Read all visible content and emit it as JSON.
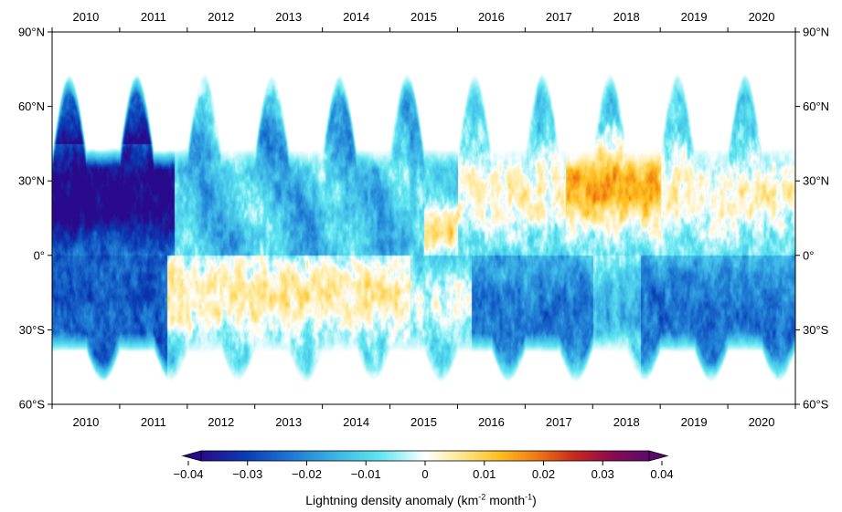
{
  "chart_data": {
    "type": "heatmap",
    "title": "",
    "x_axis": {
      "labels": [
        "2010",
        "2011",
        "2012",
        "2013",
        "2014",
        "2015",
        "2016",
        "2017",
        "2018",
        "2019",
        "2020"
      ],
      "range": [
        2010,
        2021
      ],
      "positions": "top-and-bottom"
    },
    "y_axis": {
      "labels": [
        "90°N",
        "60°N",
        "30°N",
        "0°",
        "30°S",
        "60°S"
      ],
      "values": [
        90,
        60,
        30,
        0,
        -30,
        -60
      ],
      "range": [
        -60,
        90
      ],
      "positions": "left-and-right"
    },
    "colorbar": {
      "orientation": "horizontal",
      "range": [
        -0.04,
        0.04
      ],
      "ticks": [
        "−0.04",
        "−0.03",
        "−0.02",
        "−0.01",
        "0",
        "0.01",
        "0.02",
        "0.03",
        "0.04"
      ],
      "tick_values": [
        -0.04,
        -0.03,
        -0.02,
        -0.01,
        0,
        0.01,
        0.02,
        0.03,
        0.04
      ],
      "label_main": "Lightning density anomaly (km",
      "label_exp1": "-2",
      "label_mid": " month",
      "label_exp2": "-1",
      "label_end": ")",
      "colors": [
        "#2a0a8c",
        "#0a3cb4",
        "#1e78d2",
        "#3cb4e6",
        "#5fe6f0",
        "#ffffff",
        "#ffe68c",
        "#ffbe1e",
        "#f07814",
        "#c8281e",
        "#8c0a50",
        "#5a0a6e"
      ]
    },
    "pattern_summary": {
      "2010-2011": "negative anomalies (blue) across the northern hemisphere, strongest near 0-35°N",
      "2012-2015": "mostly positive anomalies (orange) in the tropics and southern hemisphere",
      "2015-2016": "negative anomalies across the southern hemisphere",
      "2016-2020": "positive anomalies across the northern tropics, strongest near 10-45°N in 2018",
      "coverage_lat": [
        -52,
        78
      ]
    }
  }
}
